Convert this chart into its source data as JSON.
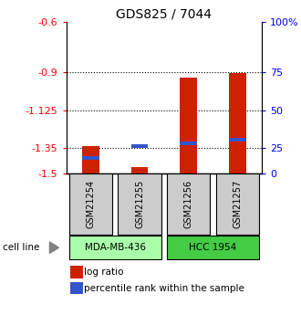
{
  "title": "GDS825 / 7044",
  "samples": [
    "GSM21254",
    "GSM21255",
    "GSM21256",
    "GSM21257"
  ],
  "log_ratios": [
    -1.34,
    -1.465,
    -0.93,
    -0.905
  ],
  "percentile_ranks_pct": [
    10,
    18,
    20,
    22
  ],
  "ymin": -1.5,
  "ymax": -0.6,
  "yticks_left": [
    -1.5,
    -1.35,
    -1.125,
    -0.9,
    -0.6
  ],
  "ytick_labels_left": [
    "-1.5",
    "-1.35",
    "-1.125",
    "-0.9",
    "-0.6"
  ],
  "ytick_labels_right": [
    "0",
    "25",
    "50",
    "75",
    "100%"
  ],
  "bar_bottom": -1.5,
  "bar_color_red": "#cc2200",
  "bar_color_blue": "#3355cc",
  "cell_line_labels": [
    "MDA-MB-436",
    "HCC 1954"
  ],
  "cell_line_color_light": "#aaffaa",
  "cell_line_color_dark": "#44cc44",
  "sample_box_color": "#cccccc",
  "dotted_lines": [
    -0.9,
    -1.125,
    -1.35
  ],
  "legend_labels": [
    "log ratio",
    "percentile rank within the sample"
  ],
  "title_fontsize": 10,
  "tick_fontsize": 8,
  "bar_width": 0.35
}
